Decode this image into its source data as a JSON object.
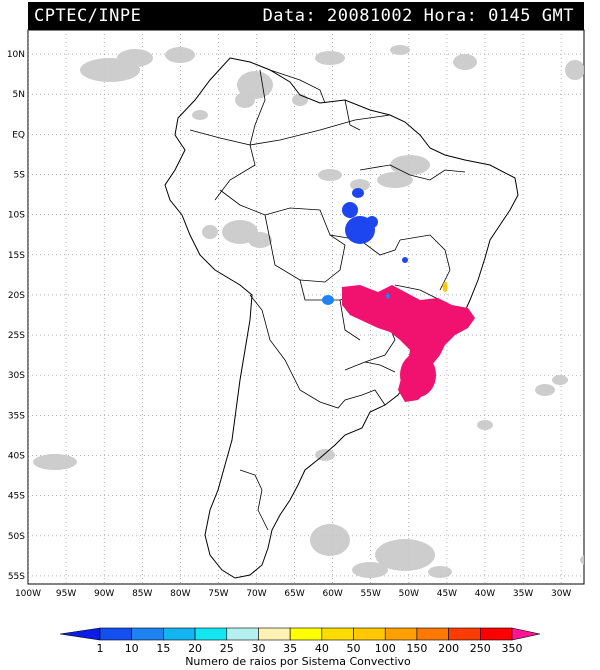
{
  "header": {
    "source": "CPTEC/INPE",
    "data_label": "Data:",
    "date": "20081002",
    "hora_label": "Hora:",
    "time": "0145",
    "tz": "GMT"
  },
  "axes": {
    "lat_labels": [
      "10N",
      "5N",
      "EQ",
      "5S",
      "10S",
      "15S",
      "20S",
      "25S",
      "30S",
      "35S",
      "40S",
      "45S",
      "50S",
      "55S"
    ],
    "lat_values": [
      10,
      5,
      0,
      -5,
      -10,
      -15,
      -20,
      -25,
      -30,
      -35,
      -40,
      -45,
      -50,
      -55
    ],
    "lon_labels": [
      "100W",
      "95W",
      "90W",
      "85W",
      "80W",
      "75W",
      "70W",
      "65W",
      "60W",
      "55W",
      "50W",
      "45W",
      "40W",
      "35W",
      "30W"
    ],
    "lon_values": [
      -100,
      -95,
      -90,
      -85,
      -80,
      -75,
      -70,
      -65,
      -60,
      -55,
      -50,
      -45,
      -40,
      -35,
      -30
    ],
    "lon_range": [
      -100,
      -27
    ],
    "lat_range": [
      -56,
      13
    ],
    "grid": "dotted"
  },
  "colorbar": {
    "title": "Numero de raios por Sistema Convectivo",
    "values": [
      "1",
      "10",
      "15",
      "20",
      "25",
      "30",
      "35",
      "40",
      "50",
      "100",
      "150",
      "200",
      "250",
      "350"
    ],
    "colors": [
      "#0a1ee8",
      "#1450f0",
      "#1e82f0",
      "#14b4f0",
      "#14e6f0",
      "#b4f0f0",
      "#fff0b4",
      "#ffff00",
      "#ffdc00",
      "#ffc800",
      "#ffa000",
      "#ff7800",
      "#ff3c00",
      "#ff0000",
      "#ff1493"
    ]
  },
  "colors": {
    "clouds": "#c8c8c8",
    "lightning_high": "#f0126e",
    "lightning_low": "#1e46f0",
    "lightning_mid": "#1e82f0",
    "lightning_yellow": "#ffc800"
  }
}
